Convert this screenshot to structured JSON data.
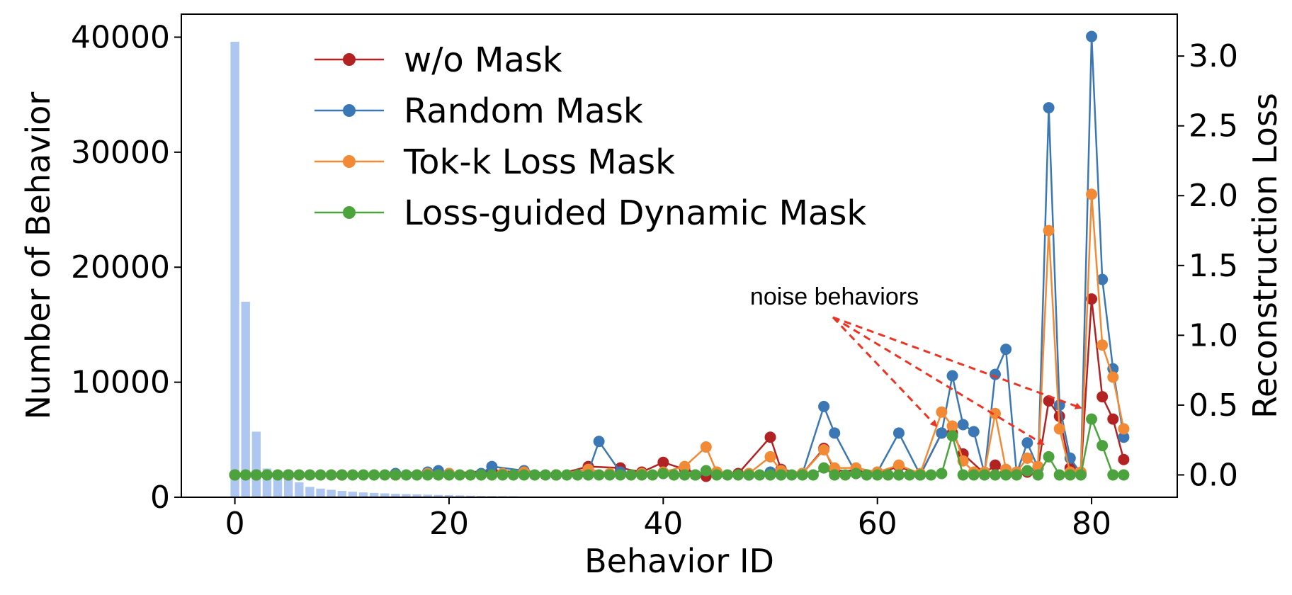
{
  "chart_data": {
    "type": "bar+line",
    "xlabel": "Behavior ID",
    "ylabel_left": "Number of Behavior",
    "ylabel_right": "Reconstruction Loss",
    "xlim": [
      -5,
      88
    ],
    "ylim_left": [
      0,
      42000
    ],
    "ylim_right": [
      -0.16,
      3.3
    ],
    "x_ticks": [
      0,
      20,
      40,
      60,
      80
    ],
    "x_tick_labels": [
      "0",
      "20",
      "40",
      "60",
      "80"
    ],
    "y_left_ticks": [
      0,
      10000,
      20000,
      30000,
      40000
    ],
    "y_left_tick_labels": [
      "0",
      "10000",
      "20000",
      "30000",
      "40000"
    ],
    "y_right_ticks": [
      0.0,
      0.5,
      1.0,
      1.5,
      2.0,
      2.5,
      3.0
    ],
    "y_right_tick_labels": [
      "0.0",
      "0.5",
      "1.0",
      "1.5",
      "2.0",
      "2.5",
      "3.0"
    ],
    "grid": false,
    "legend_position": "upper-left",
    "bars": {
      "color": "#aec7f0",
      "x": [
        0,
        1,
        2,
        3,
        4,
        5,
        6,
        7,
        8,
        9,
        10,
        11,
        12,
        13,
        14,
        15,
        16,
        17,
        18,
        19,
        20,
        21,
        22,
        23,
        24,
        25,
        26
      ],
      "values": [
        39600,
        17000,
        5700,
        2500,
        1900,
        1600,
        1300,
        900,
        750,
        650,
        550,
        480,
        420,
        380,
        340,
        300,
        270,
        250,
        220,
        200,
        180,
        160,
        140,
        120,
        110,
        100,
        90
      ]
    },
    "series": [
      {
        "name": "w/o Mask",
        "color": "#b22222",
        "points": [
          [
            0,
            0
          ],
          [
            2,
            0
          ],
          [
            5,
            0
          ],
          [
            10,
            0
          ],
          [
            15,
            0
          ],
          [
            18,
            0.01
          ],
          [
            20,
            0.01
          ],
          [
            24,
            0.03
          ],
          [
            27,
            0.02
          ],
          [
            30,
            0
          ],
          [
            33,
            0.06
          ],
          [
            36,
            0.05
          ],
          [
            38,
            0.02
          ],
          [
            40,
            0.09
          ],
          [
            42,
            0.04
          ],
          [
            44,
            -0.01
          ],
          [
            45,
            0.02
          ],
          [
            47,
            0.01
          ],
          [
            50,
            0.27
          ],
          [
            51,
            0.04
          ],
          [
            53,
            0.01
          ],
          [
            55,
            0.19
          ],
          [
            56,
            0.03
          ],
          [
            58,
            0.03
          ],
          [
            60,
            0.01
          ],
          [
            62,
            0.06
          ],
          [
            64,
            0
          ],
          [
            66,
            0.3
          ],
          [
            67,
            0.3
          ],
          [
            68,
            0.15
          ],
          [
            70,
            0.01
          ],
          [
            71,
            0.07
          ],
          [
            72,
            0.02
          ],
          [
            74,
            0.02
          ],
          [
            75,
            0.05
          ],
          [
            76,
            0.53
          ],
          [
            77,
            0.42
          ],
          [
            78,
            0.05
          ],
          [
            79,
            0.01
          ],
          [
            80,
            1.26
          ],
          [
            81,
            0.56
          ],
          [
            82,
            0.4
          ],
          [
            83,
            0.11
          ]
        ]
      },
      {
        "name": "Random Mask",
        "color": "#3b77b5",
        "points": [
          [
            0,
            0
          ],
          [
            2,
            0
          ],
          [
            5,
            0
          ],
          [
            10,
            0
          ],
          [
            15,
            0.01
          ],
          [
            18,
            0.02
          ],
          [
            19,
            0.03
          ],
          [
            20,
            0.01
          ],
          [
            23,
            0.01
          ],
          [
            24,
            0.06
          ],
          [
            27,
            0.03
          ],
          [
            30,
            0
          ],
          [
            33,
            0.02
          ],
          [
            34,
            0.24
          ],
          [
            36,
            0.02
          ],
          [
            38,
            0.01
          ],
          [
            40,
            0.01
          ],
          [
            43,
            0
          ],
          [
            45,
            0.01
          ],
          [
            48,
            0
          ],
          [
            50,
            0.02
          ],
          [
            51,
            0.03
          ],
          [
            53,
            0.01
          ],
          [
            55,
            0.49
          ],
          [
            56,
            0.3
          ],
          [
            58,
            0.01
          ],
          [
            60,
            0.02
          ],
          [
            62,
            0.3
          ],
          [
            64,
            0
          ],
          [
            66,
            0.3
          ],
          [
            67,
            0.71
          ],
          [
            68,
            0.36
          ],
          [
            69,
            0.31
          ],
          [
            70,
            0.01
          ],
          [
            71,
            0.72
          ],
          [
            72,
            0.9
          ],
          [
            73,
            0.01
          ],
          [
            74,
            0.23
          ],
          [
            75,
            0.05
          ],
          [
            76,
            2.63
          ],
          [
            77,
            0.5
          ],
          [
            78,
            0.12
          ],
          [
            79,
            0.01
          ],
          [
            80,
            3.14
          ],
          [
            81,
            1.4
          ],
          [
            82,
            0.76
          ],
          [
            83,
            0.27
          ]
        ]
      },
      {
        "name": "Tok-k Loss Mask",
        "color": "#f28a35",
        "points": [
          [
            0,
            0
          ],
          [
            2,
            0
          ],
          [
            5,
            0
          ],
          [
            10,
            0
          ],
          [
            15,
            0
          ],
          [
            18,
            0.01
          ],
          [
            20,
            0.01
          ],
          [
            25,
            0.01
          ],
          [
            27,
            0.02
          ],
          [
            30,
            0
          ],
          [
            33,
            0.04
          ],
          [
            35,
            0.01
          ],
          [
            38,
            0.01
          ],
          [
            40,
            0.02
          ],
          [
            42,
            0.06
          ],
          [
            44,
            0.2
          ],
          [
            45,
            0.02
          ],
          [
            48,
            0.01
          ],
          [
            50,
            0.13
          ],
          [
            51,
            0.03
          ],
          [
            53,
            0.01
          ],
          [
            55,
            0.18
          ],
          [
            56,
            0.05
          ],
          [
            58,
            0.05
          ],
          [
            60,
            0.02
          ],
          [
            62,
            0.07
          ],
          [
            64,
            0.01
          ],
          [
            66,
            0.45
          ],
          [
            67,
            0.35
          ],
          [
            68,
            0.1
          ],
          [
            69,
            0.02
          ],
          [
            70,
            0.02
          ],
          [
            71,
            0.44
          ],
          [
            72,
            0.04
          ],
          [
            73,
            0.02
          ],
          [
            74,
            0.12
          ],
          [
            75,
            0.06
          ],
          [
            76,
            1.75
          ],
          [
            77,
            0.33
          ],
          [
            78,
            0.02
          ],
          [
            79,
            0.02
          ],
          [
            80,
            2.01
          ],
          [
            81,
            0.93
          ],
          [
            82,
            0.7
          ],
          [
            83,
            0.33
          ]
        ]
      },
      {
        "name": "Loss-guided Dynamic Mask",
        "color": "#4ca33d",
        "points": [
          [
            0,
            0
          ],
          [
            1,
            0
          ],
          [
            2,
            0
          ],
          [
            3,
            0
          ],
          [
            4,
            0
          ],
          [
            5,
            0
          ],
          [
            6,
            0
          ],
          [
            7,
            0
          ],
          [
            8,
            0
          ],
          [
            9,
            0
          ],
          [
            10,
            0
          ],
          [
            11,
            0
          ],
          [
            12,
            0
          ],
          [
            13,
            0
          ],
          [
            14,
            0
          ],
          [
            15,
            0
          ],
          [
            16,
            0
          ],
          [
            17,
            0
          ],
          [
            18,
            0
          ],
          [
            19,
            0
          ],
          [
            20,
            0
          ],
          [
            21,
            0
          ],
          [
            22,
            0
          ],
          [
            23,
            0
          ],
          [
            24,
            0
          ],
          [
            25,
            0
          ],
          [
            26,
            0
          ],
          [
            27,
            0
          ],
          [
            28,
            0
          ],
          [
            29,
            0
          ],
          [
            30,
            0
          ],
          [
            31,
            0
          ],
          [
            32,
            0
          ],
          [
            33,
            0
          ],
          [
            34,
            0
          ],
          [
            35,
            0
          ],
          [
            36,
            0
          ],
          [
            37,
            0
          ],
          [
            38,
            0
          ],
          [
            39,
            0
          ],
          [
            40,
            0.01
          ],
          [
            41,
            0
          ],
          [
            42,
            0
          ],
          [
            43,
            0
          ],
          [
            44,
            0.03
          ],
          [
            45,
            0
          ],
          [
            46,
            0
          ],
          [
            47,
            0
          ],
          [
            48,
            0
          ],
          [
            49,
            0
          ],
          [
            50,
            0
          ],
          [
            51,
            0
          ],
          [
            52,
            0
          ],
          [
            53,
            0
          ],
          [
            54,
            0
          ],
          [
            55,
            0.05
          ],
          [
            56,
            0
          ],
          [
            57,
            0
          ],
          [
            58,
            0.01
          ],
          [
            59,
            0
          ],
          [
            60,
            0
          ],
          [
            61,
            0
          ],
          [
            62,
            0
          ],
          [
            63,
            0
          ],
          [
            64,
            0
          ],
          [
            65,
            0
          ],
          [
            66,
            0.01
          ],
          [
            67,
            0.28
          ],
          [
            68,
            0
          ],
          [
            69,
            0
          ],
          [
            70,
            0
          ],
          [
            71,
            0
          ],
          [
            72,
            0
          ],
          [
            73,
            0
          ],
          [
            74,
            0.03
          ],
          [
            75,
            0
          ],
          [
            76,
            0.13
          ],
          [
            77,
            0
          ],
          [
            78,
            0
          ],
          [
            79,
            0
          ],
          [
            80,
            0.4
          ],
          [
            81,
            0.21
          ],
          [
            82,
            0
          ],
          [
            83,
            0
          ]
        ]
      }
    ],
    "annotation": {
      "text": "noise behaviors",
      "color": "#ee3322",
      "arrow_targets": [
        [
          65.5,
          0.35
        ],
        [
          75.5,
          0.22
        ],
        [
          79,
          0.48
        ]
      ]
    }
  }
}
